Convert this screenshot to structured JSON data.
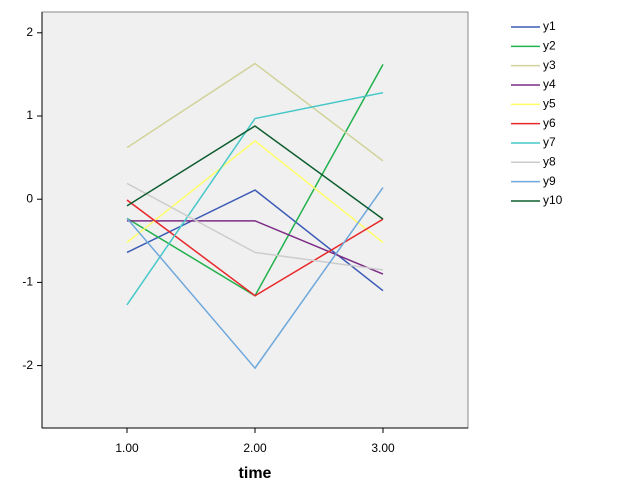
{
  "chart_data": {
    "type": "line",
    "x_label": "time",
    "x": [
      1,
      2,
      3
    ],
    "xlim": [
      0.336,
      3.664
    ],
    "xticks": [
      {
        "value": 1,
        "label": "1.00"
      },
      {
        "value": 2,
        "label": "2.00"
      },
      {
        "value": 3,
        "label": "3.00"
      }
    ],
    "ylim": [
      -2.75,
      2.25
    ],
    "yticks": [
      2,
      1,
      0,
      -1,
      -2
    ],
    "grid": false,
    "legend": "right",
    "series": [
      {
        "name": "y1",
        "color": "#3c5bb5",
        "values": [
          -0.64,
          0.11,
          -1.1
        ]
      },
      {
        "name": "y2",
        "color": "#22b14c",
        "values": [
          -0.23,
          -1.16,
          1.62
        ]
      },
      {
        "name": "y3",
        "color": "#d2d39a",
        "values": [
          0.62,
          1.63,
          0.46
        ]
      },
      {
        "name": "y4",
        "color": "#7b2c85",
        "values": [
          -0.26,
          -0.26,
          -0.9
        ]
      },
      {
        "name": "y5",
        "color": "#ffff66",
        "values": [
          -0.52,
          0.7,
          -0.52
        ]
      },
      {
        "name": "y6",
        "color": "#e8282a",
        "values": [
          -0.01,
          -1.16,
          -0.24
        ]
      },
      {
        "name": "y7",
        "color": "#46c8c8",
        "values": [
          -1.27,
          0.97,
          1.28
        ]
      },
      {
        "name": "y8",
        "color": "#cccccc",
        "values": [
          0.19,
          -0.64,
          -0.85
        ]
      },
      {
        "name": "y9",
        "color": "#6fa8dc",
        "values": [
          -0.23,
          -2.03,
          0.14
        ]
      },
      {
        "name": "y10",
        "color": "#0d5e2f",
        "values": [
          -0.08,
          0.88,
          -0.24
        ]
      }
    ]
  }
}
